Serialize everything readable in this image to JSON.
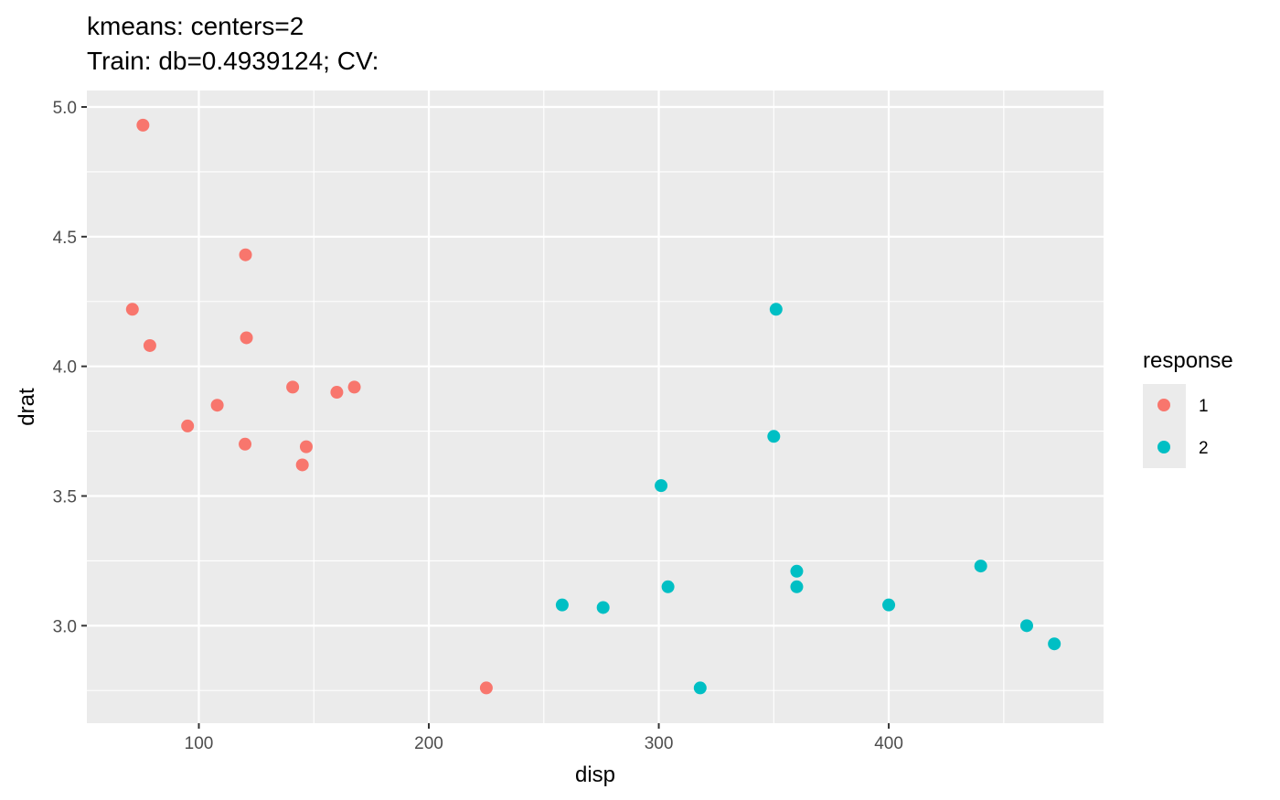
{
  "chart_data": {
    "type": "scatter",
    "title_lines": [
      "kmeans: centers=2",
      "Train: db=0.4939124; CV:"
    ],
    "xlabel": "disp",
    "ylabel": "drat",
    "xlim": [
      51.3,
      493.4
    ],
    "ylim": [
      2.624,
      5.0635
    ],
    "x_ticks": [
      100,
      200,
      300,
      400
    ],
    "x_tick_labels": [
      "100",
      "200",
      "300",
      "400"
    ],
    "x_minor_ticks": [
      150,
      250,
      350,
      450
    ],
    "y_ticks": [
      3.0,
      3.5,
      4.0,
      4.5,
      5.0
    ],
    "y_tick_labels": [
      "3.0",
      "3.5",
      "4.0",
      "4.5",
      "5.0"
    ],
    "y_minor_ticks": [
      2.75,
      3.25,
      3.75,
      4.25,
      4.75
    ],
    "grid": true,
    "panel_background": "#ebebeb",
    "grid_color": "#ffffff",
    "legend": {
      "title": "response",
      "position": "right",
      "entries": [
        {
          "label": "1",
          "color": "#f8766d"
        },
        {
          "label": "2",
          "color": "#00bfc4"
        }
      ]
    },
    "series": [
      {
        "name": "1",
        "color": "#f8766d",
        "points": [
          {
            "x": 75.7,
            "y": 4.93
          },
          {
            "x": 120.3,
            "y": 4.43
          },
          {
            "x": 71.1,
            "y": 4.22
          },
          {
            "x": 120.7,
            "y": 4.11
          },
          {
            "x": 78.7,
            "y": 4.08
          },
          {
            "x": 140.8,
            "y": 3.92
          },
          {
            "x": 167.6,
            "y": 3.92
          },
          {
            "x": 160.0,
            "y": 3.9
          },
          {
            "x": 108.0,
            "y": 3.85
          },
          {
            "x": 95.1,
            "y": 3.77
          },
          {
            "x": 120.1,
            "y": 3.7
          },
          {
            "x": 146.7,
            "y": 3.69
          },
          {
            "x": 145.0,
            "y": 3.62
          },
          {
            "x": 225.0,
            "y": 2.76
          }
        ]
      },
      {
        "name": "2",
        "color": "#00bfc4",
        "points": [
          {
            "x": 351.0,
            "y": 4.22
          },
          {
            "x": 350.0,
            "y": 3.73
          },
          {
            "x": 301.0,
            "y": 3.54
          },
          {
            "x": 440.0,
            "y": 3.23
          },
          {
            "x": 360.0,
            "y": 3.21
          },
          {
            "x": 360.0,
            "y": 3.15
          },
          {
            "x": 304.0,
            "y": 3.15
          },
          {
            "x": 258.0,
            "y": 3.08
          },
          {
            "x": 400.0,
            "y": 3.08
          },
          {
            "x": 275.8,
            "y": 3.07
          },
          {
            "x": 460.0,
            "y": 3.0
          },
          {
            "x": 472.0,
            "y": 2.93
          },
          {
            "x": 318.0,
            "y": 2.76
          }
        ]
      }
    ]
  }
}
